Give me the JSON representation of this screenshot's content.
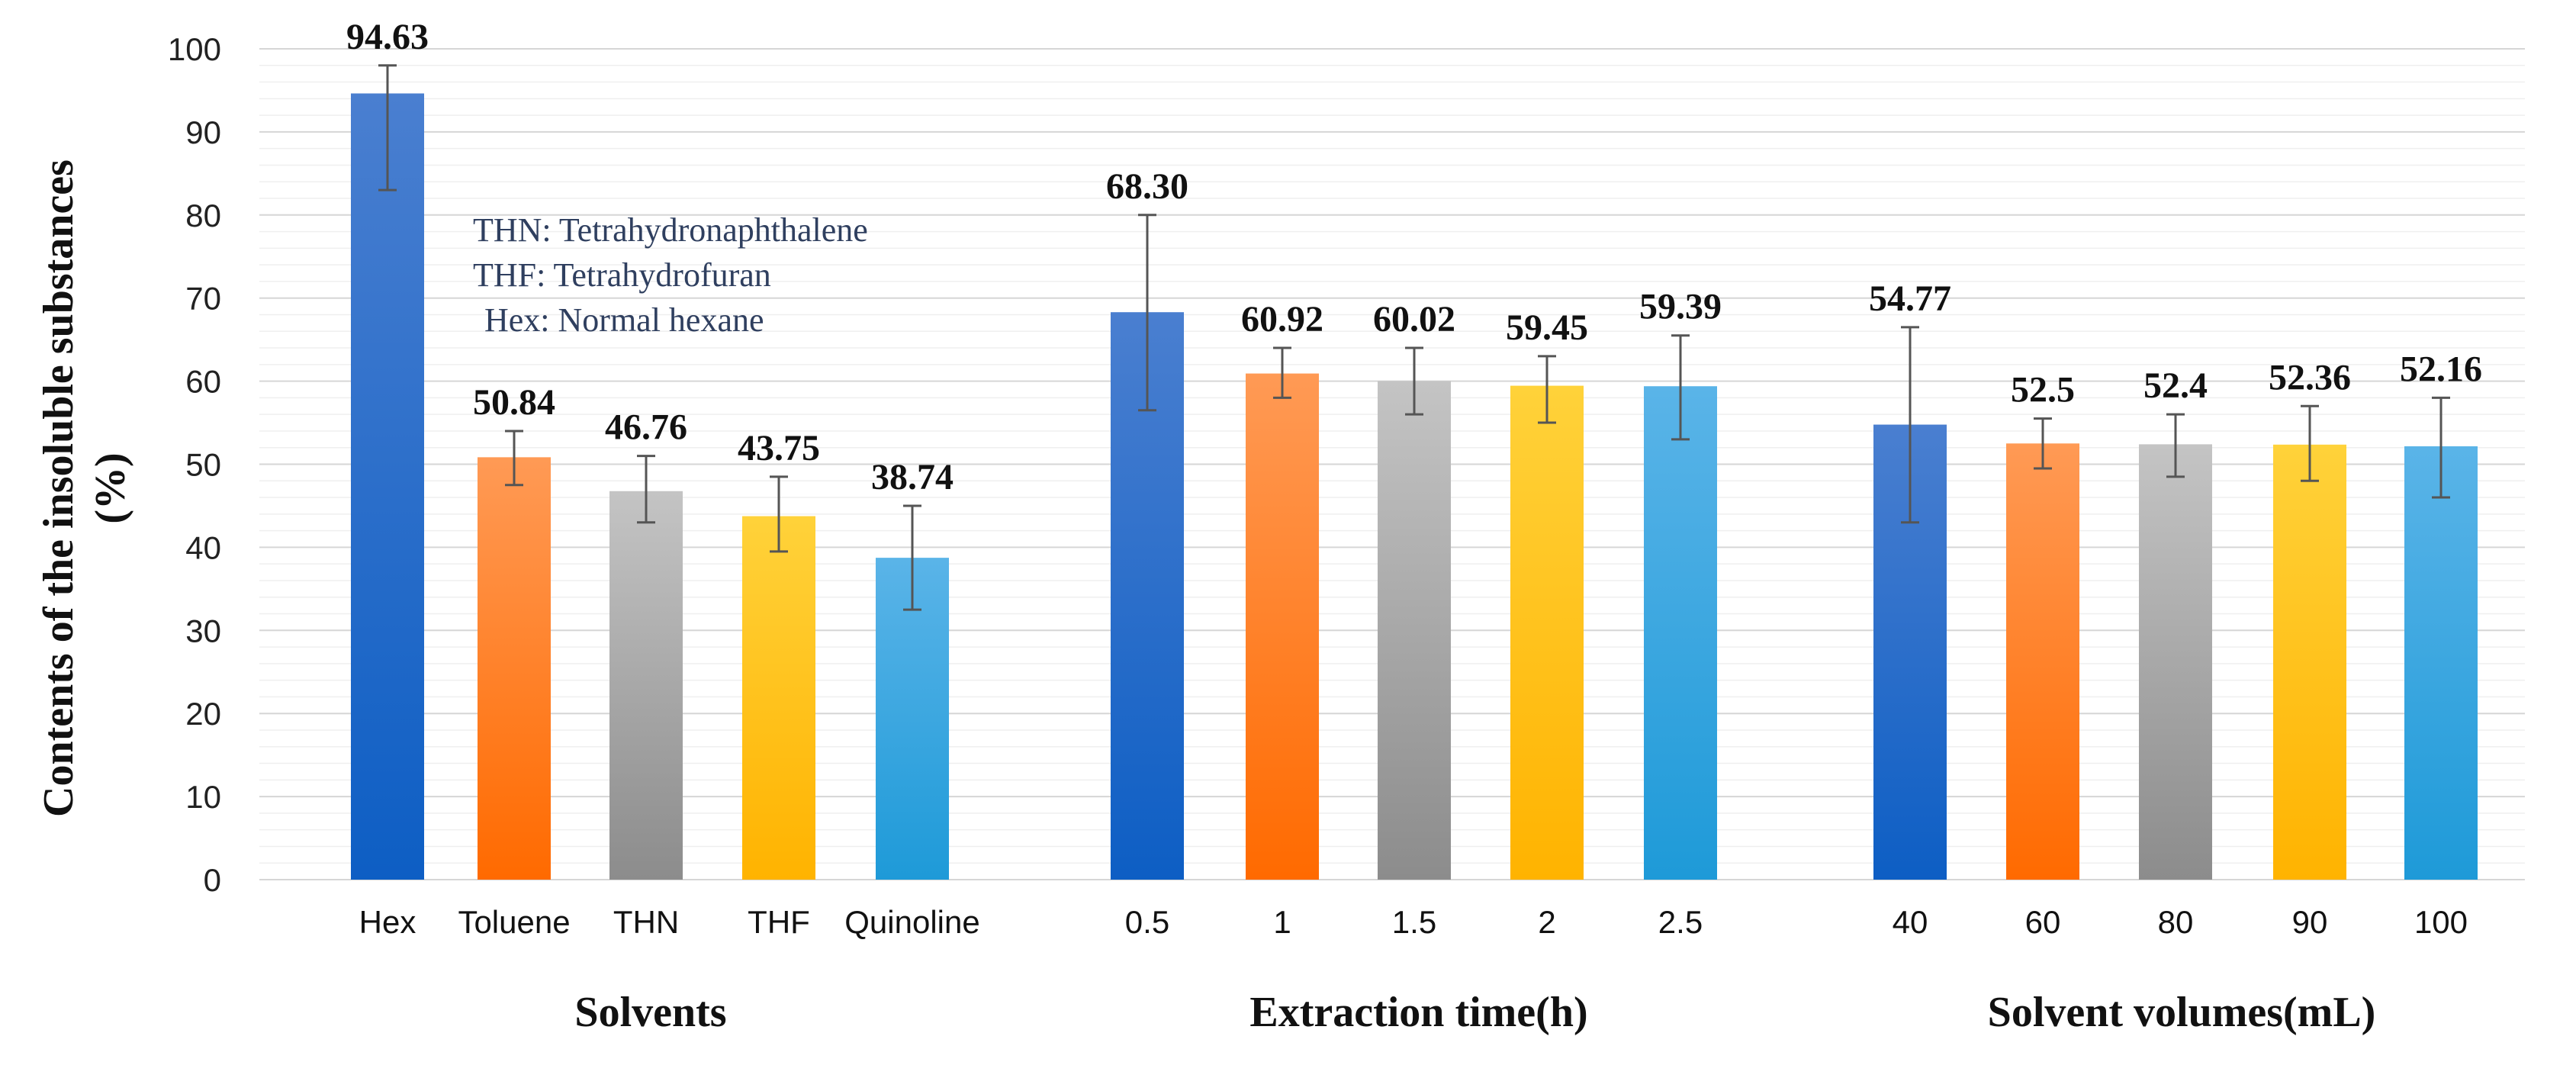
{
  "chart_data": {
    "type": "bar",
    "ylabel": "Contents of the insoluble substances (%)",
    "ylabel_lines": [
      "Contents of the insoluble substances",
      "(%)"
    ],
    "ylim": [
      0,
      100
    ],
    "yticks": [
      0,
      10,
      20,
      30,
      40,
      50,
      60,
      70,
      80,
      90,
      100
    ],
    "grid": true,
    "notes": [
      "THN: Tetrahydronaphthalene",
      "THF: Tetrahydrofuran",
      "Hex: Normal hexane"
    ],
    "groups": [
      {
        "title": "Solvents",
        "categories": [
          "Hex",
          "Toluene",
          "THN",
          "THF",
          "Quinoline"
        ],
        "values": [
          94.63,
          50.84,
          46.76,
          43.75,
          38.74
        ],
        "value_labels": [
          "94.63",
          "50.84",
          "46.76",
          "43.75",
          "38.74"
        ],
        "error_low": [
          83,
          47.5,
          43,
          39.5,
          32.5
        ],
        "error_high": [
          98,
          54,
          51,
          48.5,
          45
        ]
      },
      {
        "title": "Extraction time(h)",
        "categories": [
          "0.5",
          "1",
          "1.5",
          "2",
          "2.5"
        ],
        "values": [
          68.3,
          60.92,
          60.02,
          59.45,
          59.39
        ],
        "value_labels": [
          "68.30",
          "60.92",
          "60.02",
          "59.45",
          "59.39"
        ],
        "error_low": [
          56.5,
          58,
          56,
          55,
          53
        ],
        "error_high": [
          80,
          64,
          64,
          63,
          65.5
        ]
      },
      {
        "title": "Solvent volumes(mL)",
        "categories": [
          "40",
          "60",
          "80",
          "90",
          "100"
        ],
        "values": [
          54.77,
          52.5,
          52.4,
          52.36,
          52.16
        ],
        "value_labels": [
          "54.77",
          "52.5",
          "52.4",
          "52.36",
          "52.16"
        ],
        "error_low": [
          43,
          49.5,
          48.5,
          48,
          46
        ],
        "error_high": [
          66.5,
          55.5,
          56,
          57,
          58
        ]
      }
    ],
    "bar_colors": [
      [
        "#4a7fd0",
        "#0d5ec4"
      ],
      [
        "#ff9a55",
        "#ff6a00"
      ],
      [
        "#c4c4c4",
        "#8c8c8c"
      ],
      [
        "#ffd23a",
        "#ffb300"
      ],
      [
        "#5ab4e8",
        "#1e9ad8"
      ]
    ]
  }
}
